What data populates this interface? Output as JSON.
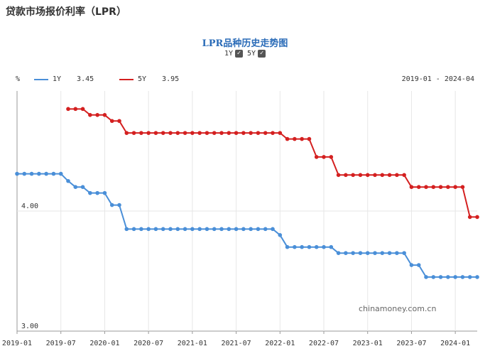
{
  "page_title": "贷款市场报价利率（LPR）",
  "chart_data": {
    "type": "line",
    "title": "LPR品种历史走势图",
    "toggles": [
      {
        "label": "1Y",
        "checked": true
      },
      {
        "label": "5Y",
        "checked": true
      }
    ],
    "unit_label": "%",
    "range_label": "2019-01 - 2024-04",
    "ylim": [
      3.0,
      5.0
    ],
    "y_ticks": [
      "4.00",
      "3.00"
    ],
    "y_tick_values": [
      4.0,
      3.0
    ],
    "x_ticks": [
      "2019-01",
      "2019-07",
      "2020-01",
      "2020-07",
      "2021-01",
      "2021-07",
      "2022-01",
      "2022-07",
      "2023-01",
      "2023-07",
      "2024-01"
    ],
    "series": [
      {
        "name": "1Y",
        "latest": "3.45",
        "color": "#4a8fd8",
        "values": [
          4.31,
          4.31,
          4.31,
          4.31,
          4.31,
          4.31,
          4.31,
          4.25,
          4.2,
          4.2,
          4.15,
          4.15,
          4.15,
          4.05,
          4.05,
          3.85,
          3.85,
          3.85,
          3.85,
          3.85,
          3.85,
          3.85,
          3.85,
          3.85,
          3.85,
          3.85,
          3.85,
          3.85,
          3.85,
          3.85,
          3.85,
          3.85,
          3.85,
          3.85,
          3.85,
          3.85,
          3.8,
          3.7,
          3.7,
          3.7,
          3.7,
          3.7,
          3.7,
          3.7,
          3.65,
          3.65,
          3.65,
          3.65,
          3.65,
          3.65,
          3.65,
          3.65,
          3.65,
          3.65,
          3.55,
          3.55,
          3.45,
          3.45,
          3.45,
          3.45,
          3.45,
          3.45,
          3.45,
          3.45
        ]
      },
      {
        "name": "5Y",
        "latest": "3.95",
        "color": "#d42020",
        "values": [
          null,
          null,
          null,
          null,
          null,
          null,
          null,
          4.85,
          4.85,
          4.85,
          4.8,
          4.8,
          4.8,
          4.75,
          4.75,
          4.65,
          4.65,
          4.65,
          4.65,
          4.65,
          4.65,
          4.65,
          4.65,
          4.65,
          4.65,
          4.65,
          4.65,
          4.65,
          4.65,
          4.65,
          4.65,
          4.65,
          4.65,
          4.65,
          4.65,
          4.65,
          4.65,
          4.6,
          4.6,
          4.6,
          4.6,
          4.45,
          4.45,
          4.45,
          4.3,
          4.3,
          4.3,
          4.3,
          4.3,
          4.3,
          4.3,
          4.3,
          4.3,
          4.3,
          4.2,
          4.2,
          4.2,
          4.2,
          4.2,
          4.2,
          4.2,
          4.2,
          3.95,
          3.95
        ]
      }
    ]
  },
  "watermark": "chinamoney.com.cn"
}
